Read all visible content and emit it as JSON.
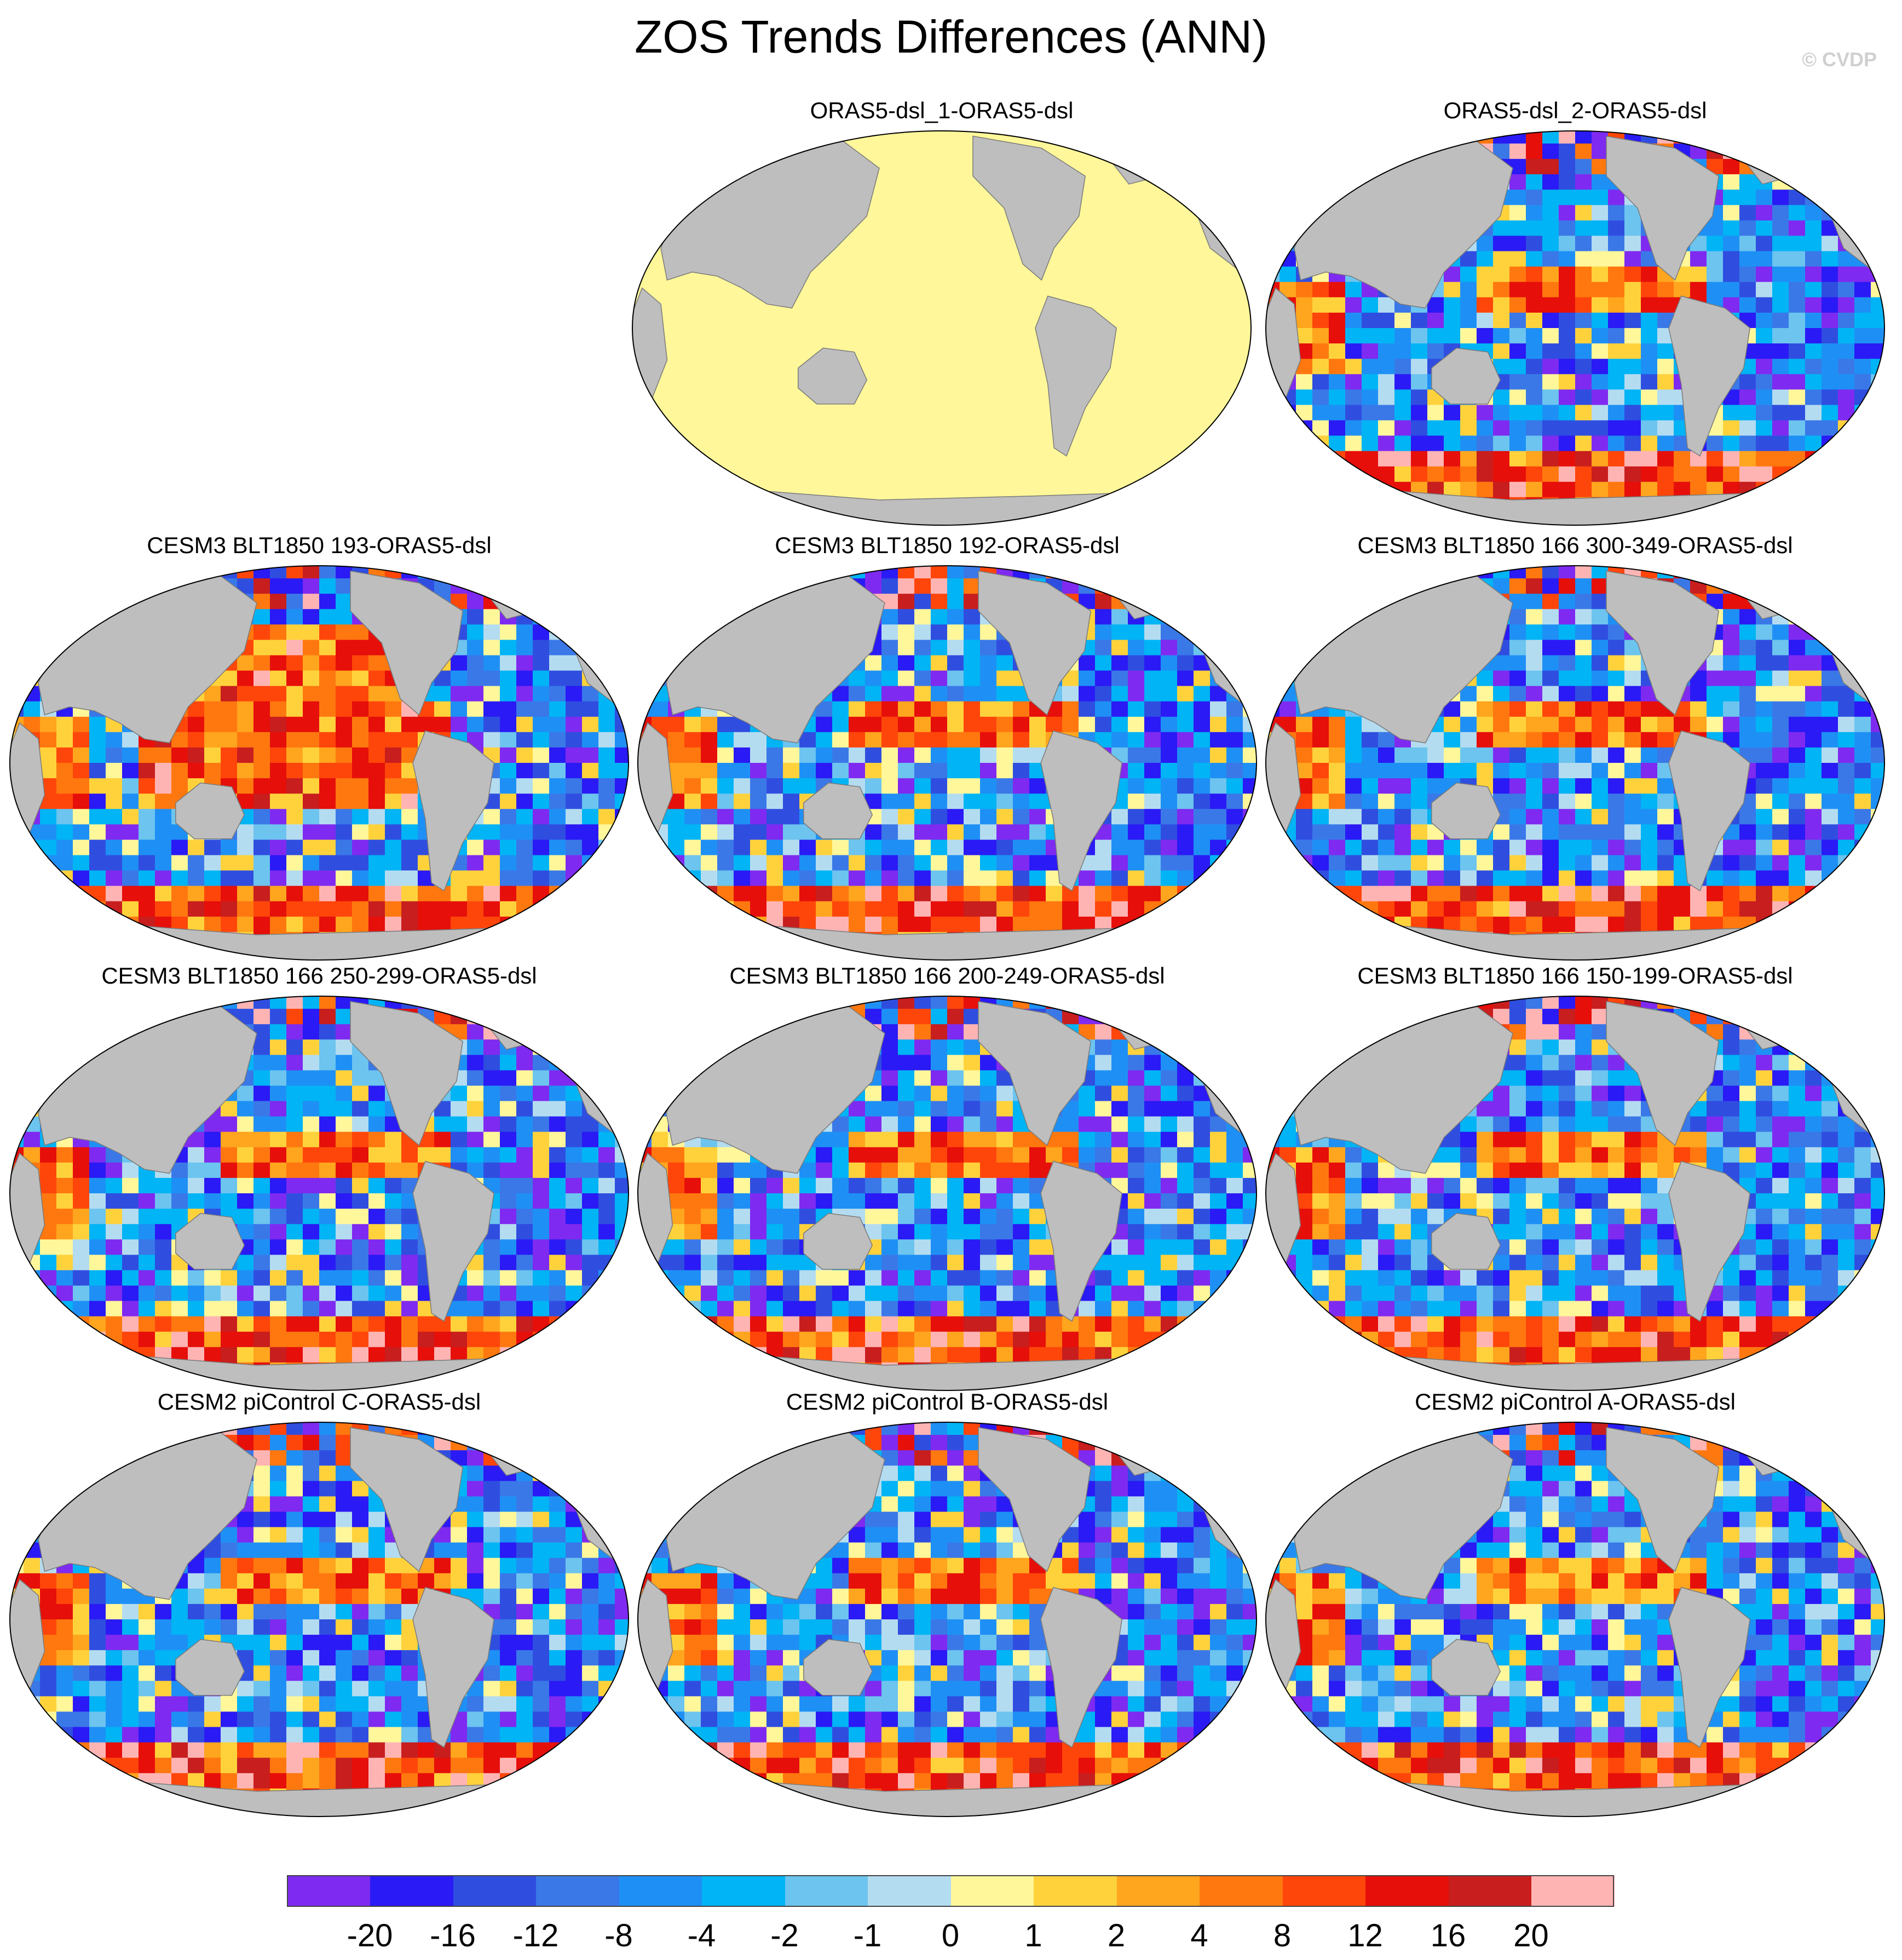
{
  "figure": {
    "title": "ZOS Trends Differences (ANN)",
    "credit": "© CVDP"
  },
  "panels": [
    {
      "label": "ORAS5-dsl_1-ORAS5-dsl",
      "pattern": "uniform-zero"
    },
    {
      "label": "ORAS5-dsl_2-ORAS5-dsl",
      "pattern": "mixed"
    },
    {
      "label": "CESM3 BLT1850 193-ORAS5-dsl",
      "pattern": "warm-pacific"
    },
    {
      "label": "CESM3 BLT1850 192-ORAS5-dsl",
      "pattern": "mixed"
    },
    {
      "label": "CESM3 BLT1850 166 300-349-ORAS5-dsl",
      "pattern": "mixed"
    },
    {
      "label": "CESM3 BLT1850 166 250-299-ORAS5-dsl",
      "pattern": "mixed"
    },
    {
      "label": "CESM3 BLT1850 166 200-249-ORAS5-dsl",
      "pattern": "mixed"
    },
    {
      "label": "CESM3 BLT1850 166 150-199-ORAS5-dsl",
      "pattern": "mixed"
    },
    {
      "label": "CESM2 piControl C-ORAS5-dsl",
      "pattern": "mixed"
    },
    {
      "label": "CESM2 piControl B-ORAS5-dsl",
      "pattern": "mixed"
    },
    {
      "label": "CESM2 piControl A-ORAS5-dsl",
      "pattern": "mixed"
    }
  ],
  "colorbar": {
    "colors": [
      "#7f2af0",
      "#2a1af5",
      "#2f4ee0",
      "#3a78e8",
      "#1e90f5",
      "#00b4f5",
      "#6cc4ef",
      "#b4dcf0",
      "#fff79a",
      "#ffd23c",
      "#ffa51e",
      "#ff780f",
      "#ff460a",
      "#e60f0a",
      "#c81e1e",
      "#ffb4b4"
    ],
    "labels": [
      "-20",
      "-16",
      "-12",
      "-8",
      "-4",
      "-2",
      "-1",
      "0",
      "1",
      "2",
      "4",
      "8",
      "12",
      "16",
      "20"
    ]
  },
  "colors": {
    "land": "#bebebe",
    "missing": "#ffffff",
    "zero_band": "#fff79a"
  }
}
